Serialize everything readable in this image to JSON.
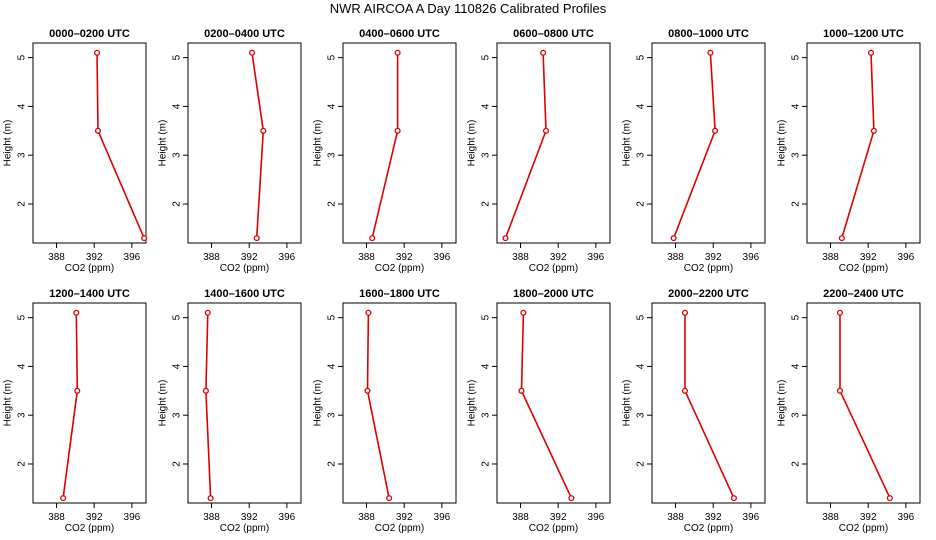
{
  "title": "NWR AIRCOA A  Day 110826  Calibrated Profiles",
  "colors": {
    "series": "#dd0000",
    "axis": "#000000"
  },
  "chart_data": [
    {
      "type": "line",
      "title": "0000–0200 UTC",
      "xlabel": "CO2 (ppm)",
      "ylabel": "Height (m)",
      "xlim": [
        385.5,
        397.5
      ],
      "ylim": [
        1.2,
        5.3
      ],
      "xticks": [
        388,
        392,
        396
      ],
      "yticks": [
        2,
        3,
        4,
        5
      ],
      "grid": false,
      "points": [
        {
          "x": 392.3,
          "y": 5.1
        },
        {
          "x": 392.4,
          "y": 3.5
        },
        {
          "x": 397.3,
          "y": 1.3
        }
      ]
    },
    {
      "type": "line",
      "title": "0200–0400 UTC",
      "xlabel": "CO2 (ppm)",
      "ylabel": "Height (m)",
      "xlim": [
        385.5,
        397.5
      ],
      "ylim": [
        1.2,
        5.3
      ],
      "xticks": [
        388,
        392,
        396
      ],
      "yticks": [
        2,
        3,
        4,
        5
      ],
      "grid": false,
      "points": [
        {
          "x": 392.3,
          "y": 5.1
        },
        {
          "x": 393.5,
          "y": 3.5
        },
        {
          "x": 392.8,
          "y": 1.3
        }
      ]
    },
    {
      "type": "line",
      "title": "0400–0600 UTC",
      "xlabel": "CO2 (ppm)",
      "ylabel": "Height (m)",
      "xlim": [
        385.5,
        397.5
      ],
      "ylim": [
        1.2,
        5.3
      ],
      "xticks": [
        388,
        392,
        396
      ],
      "yticks": [
        2,
        3,
        4,
        5
      ],
      "grid": false,
      "points": [
        {
          "x": 391.3,
          "y": 5.1
        },
        {
          "x": 391.3,
          "y": 3.5
        },
        {
          "x": 388.6,
          "y": 1.3
        }
      ]
    },
    {
      "type": "line",
      "title": "0600–0800 UTC",
      "xlabel": "CO2 (ppm)",
      "ylabel": "Height (m)",
      "xlim": [
        385.5,
        397.5
      ],
      "ylim": [
        1.2,
        5.3
      ],
      "xticks": [
        388,
        392,
        396
      ],
      "yticks": [
        2,
        3,
        4,
        5
      ],
      "grid": false,
      "points": [
        {
          "x": 390.4,
          "y": 5.1
        },
        {
          "x": 390.7,
          "y": 3.5
        },
        {
          "x": 386.4,
          "y": 1.3
        }
      ]
    },
    {
      "type": "line",
      "title": "0800–1000 UTC",
      "xlabel": "CO2 (ppm)",
      "ylabel": "Height (m)",
      "xlim": [
        385.5,
        397.5
      ],
      "ylim": [
        1.2,
        5.3
      ],
      "xticks": [
        388,
        392,
        396
      ],
      "yticks": [
        2,
        3,
        4,
        5
      ],
      "grid": false,
      "points": [
        {
          "x": 391.7,
          "y": 5.1
        },
        {
          "x": 392.2,
          "y": 3.5
        },
        {
          "x": 387.8,
          "y": 1.3
        }
      ]
    },
    {
      "type": "line",
      "title": "1000–1200 UTC",
      "xlabel": "CO2 (ppm)",
      "ylabel": "Height (m)",
      "xlim": [
        385.5,
        397.5
      ],
      "ylim": [
        1.2,
        5.3
      ],
      "xticks": [
        388,
        392,
        396
      ],
      "yticks": [
        2,
        3,
        4,
        5
      ],
      "grid": false,
      "points": [
        {
          "x": 392.3,
          "y": 5.1
        },
        {
          "x": 392.6,
          "y": 3.5
        },
        {
          "x": 389.2,
          "y": 1.3
        }
      ]
    },
    {
      "type": "line",
      "title": "1200–1400 UTC",
      "xlabel": "CO2 (ppm)",
      "ylabel": "Height (m)",
      "xlim": [
        385.5,
        397.5
      ],
      "ylim": [
        1.2,
        5.3
      ],
      "xticks": [
        388,
        392,
        396
      ],
      "yticks": [
        2,
        3,
        4,
        5
      ],
      "grid": false,
      "points": [
        {
          "x": 390.1,
          "y": 5.1
        },
        {
          "x": 390.2,
          "y": 3.5
        },
        {
          "x": 388.7,
          "y": 1.3
        }
      ]
    },
    {
      "type": "line",
      "title": "1400–1600 UTC",
      "xlabel": "CO2 (ppm)",
      "ylabel": "Height (m)",
      "xlim": [
        385.5,
        397.5
      ],
      "ylim": [
        1.2,
        5.3
      ],
      "xticks": [
        388,
        392,
        396
      ],
      "yticks": [
        2,
        3,
        4,
        5
      ],
      "grid": false,
      "points": [
        {
          "x": 387.6,
          "y": 5.1
        },
        {
          "x": 387.4,
          "y": 3.5
        },
        {
          "x": 387.9,
          "y": 1.3
        }
      ]
    },
    {
      "type": "line",
      "title": "1600–1800 UTC",
      "xlabel": "CO2 (ppm)",
      "ylabel": "Height (m)",
      "xlim": [
        385.5,
        397.5
      ],
      "ylim": [
        1.2,
        5.3
      ],
      "xticks": [
        388,
        392,
        396
      ],
      "yticks": [
        2,
        3,
        4,
        5
      ],
      "grid": false,
      "points": [
        {
          "x": 388.2,
          "y": 5.1
        },
        {
          "x": 388.1,
          "y": 3.5
        },
        {
          "x": 390.4,
          "y": 1.3
        }
      ]
    },
    {
      "type": "line",
      "title": "1800–2000 UTC",
      "xlabel": "CO2 (ppm)",
      "ylabel": "Height (m)",
      "xlim": [
        385.5,
        397.5
      ],
      "ylim": [
        1.2,
        5.3
      ],
      "xticks": [
        388,
        392,
        396
      ],
      "yticks": [
        2,
        3,
        4,
        5
      ],
      "grid": false,
      "points": [
        {
          "x": 388.3,
          "y": 5.1
        },
        {
          "x": 388.1,
          "y": 3.5
        },
        {
          "x": 393.4,
          "y": 1.3
        }
      ]
    },
    {
      "type": "line",
      "title": "2000–2200 UTC",
      "xlabel": "CO2 (ppm)",
      "ylabel": "Height (m)",
      "xlim": [
        385.5,
        397.5
      ],
      "ylim": [
        1.2,
        5.3
      ],
      "xticks": [
        388,
        392,
        396
      ],
      "yticks": [
        2,
        3,
        4,
        5
      ],
      "grid": false,
      "points": [
        {
          "x": 389.0,
          "y": 5.1
        },
        {
          "x": 389.0,
          "y": 3.5
        },
        {
          "x": 394.2,
          "y": 1.3
        }
      ]
    },
    {
      "type": "line",
      "title": "2200–2400 UTC",
      "xlabel": "CO2 (ppm)",
      "ylabel": "Height (m)",
      "xlim": [
        385.5,
        397.5
      ],
      "ylim": [
        1.2,
        5.3
      ],
      "xticks": [
        388,
        392,
        396
      ],
      "yticks": [
        2,
        3,
        4,
        5
      ],
      "grid": false,
      "points": [
        {
          "x": 389.0,
          "y": 5.1
        },
        {
          "x": 389.0,
          "y": 3.5
        },
        {
          "x": 394.3,
          "y": 1.3
        }
      ]
    }
  ]
}
